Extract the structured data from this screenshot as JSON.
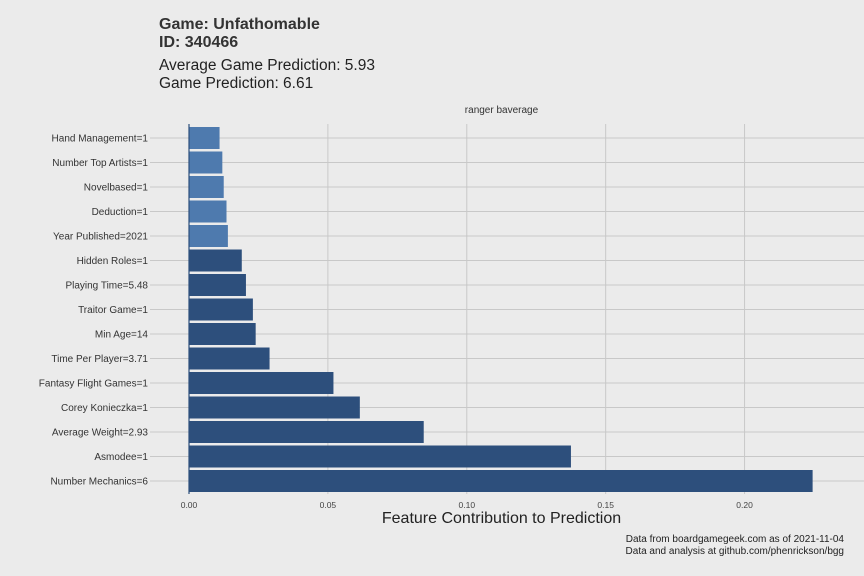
{
  "header": {
    "title_line1": "Game: Unfathomable",
    "title_line2": "ID: 340466",
    "subtitle_line1": "Average Game Prediction: 5.93",
    "subtitle_line2": "Game Prediction: 6.61"
  },
  "caption": {
    "line1": "Data from boardgamegeek.com as of 2021-11-04",
    "line2": "Data and analysis at github.com/phenrickson/bgg"
  },
  "colors": {
    "background": "#ebebeb",
    "grid": "#c8c8c8",
    "bar_dark": "#2d4f7c",
    "bar_light": "#4e7aae"
  },
  "chart_data": {
    "type": "bar",
    "orientation": "horizontal",
    "facet_label": "ranger baverage",
    "xlabel": "Feature Contribution to Prediction",
    "ylabel": "",
    "xlim": [
      0,
      0.225
    ],
    "xticks": [
      "0.00",
      "0.05",
      "0.10",
      "0.15",
      "0.20"
    ],
    "xtick_values": [
      0,
      0.05,
      0.1,
      0.15,
      0.2
    ],
    "grid": true,
    "categories": [
      "Hand Management=1",
      "Number Top Artists=1",
      "Novelbased=1",
      "Deduction=1",
      "Year Published=2021",
      "Hidden Roles=1",
      "Playing Time=5.48",
      "Traitor Game=1",
      "Min Age=14",
      "Time Per Player=3.71",
      "Fantasy Flight Games=1",
      "Corey Konieczka=1",
      "Average Weight=2.93",
      "Asmodee=1",
      "Number Mechanics=6"
    ],
    "values": [
      0.011,
      0.012,
      0.0125,
      0.0135,
      0.014,
      0.019,
      0.0205,
      0.023,
      0.024,
      0.029,
      0.052,
      0.0615,
      0.0845,
      0.1375,
      0.2245
    ],
    "bar_shade": [
      "light",
      "light",
      "light",
      "light",
      "light",
      "dark",
      "dark",
      "dark",
      "dark",
      "dark",
      "dark",
      "dark",
      "dark",
      "dark",
      "dark"
    ]
  }
}
